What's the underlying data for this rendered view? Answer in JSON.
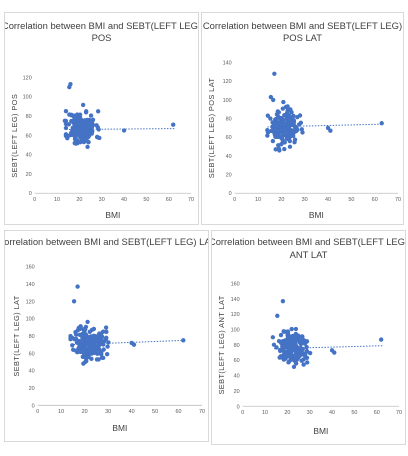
{
  "chart_data": [
    {
      "type": "scatter",
      "title": [
        "Correlation between BMI and SEBT(LEFT LEG)",
        "POS"
      ],
      "xlabel": "BMI",
      "ylabel": "SEBT(LEFT LEG) POS",
      "xlim": [
        0,
        70
      ],
      "xticks": [
        0,
        10,
        20,
        30,
        40,
        50,
        60,
        70
      ],
      "ylim": [
        0,
        120
      ],
      "yticks": [
        0,
        20,
        40,
        60,
        80,
        100,
        120
      ],
      "grid": false,
      "color": "#4472c4",
      "trendline": {
        "style": "dotted",
        "x": [
          14,
          63
        ],
        "y": [
          66,
          67
        ]
      },
      "outliers": {
        "x": [
          15.5,
          16,
          14,
          13.5,
          40,
          62
        ],
        "y": [
          110,
          113,
          85,
          75,
          65,
          71
        ]
      }
    },
    {
      "type": "scatter",
      "title": [
        "Correlation between BMI and SEBT(LEFT LEG)",
        "POS LAT"
      ],
      "xlabel": "BMI",
      "ylabel": "SEBT(LEFT LEG) POS LAT",
      "xlim": [
        0,
        70
      ],
      "xticks": [
        0,
        10,
        20,
        30,
        40,
        50,
        60,
        70
      ],
      "ylim": [
        0,
        140
      ],
      "yticks": [
        0,
        20,
        40,
        60,
        80,
        100,
        120,
        140
      ],
      "grid": false,
      "color": "#4472c4",
      "trendline": {
        "style": "dotted",
        "x": [
          14,
          63
        ],
        "y": [
          71,
          74
        ]
      },
      "outliers": {
        "x": [
          17,
          15.5,
          16.5,
          40,
          41,
          63
        ],
        "y": [
          128,
          103,
          100,
          70,
          67,
          75
        ]
      }
    },
    {
      "type": "scatter",
      "title": [
        "Correlation between BMI and SEBT(LEFT LEG) LAT"
      ],
      "xlabel": "BMI",
      "ylabel": "SEBT(LEFT LEG) LAT",
      "xlim": [
        0,
        70
      ],
      "xticks": [
        0,
        10,
        20,
        30,
        40,
        50,
        60,
        70
      ],
      "ylim": [
        0,
        160
      ],
      "yticks": [
        0,
        20,
        40,
        60,
        80,
        100,
        120,
        140,
        160
      ],
      "grid": false,
      "color": "#4472c4",
      "trendline": {
        "style": "dotted",
        "x": [
          14,
          63
        ],
        "y": [
          70,
          75
        ]
      },
      "outliers": {
        "x": [
          17,
          15.5,
          14,
          40,
          41,
          62
        ],
        "y": [
          137,
          120,
          80,
          72,
          70,
          75
        ]
      }
    },
    {
      "type": "scatter",
      "title": [
        "Correlation between BMI and SEBT(LEFT LEG)",
        "ANT LAT"
      ],
      "xlabel": "BMI",
      "ylabel": "SEBT(LEFT LEG) ANT LAT",
      "xlim": [
        0,
        70
      ],
      "xticks": [
        0,
        10,
        20,
        30,
        40,
        50,
        60,
        70
      ],
      "ylim": [
        0,
        160
      ],
      "yticks": [
        0,
        20,
        40,
        60,
        80,
        100,
        120,
        140,
        160
      ],
      "grid": false,
      "color": "#4472c4",
      "trendline": {
        "style": "dotted",
        "x": [
          14,
          63
        ],
        "y": [
          75,
          79
        ]
      },
      "outliers": {
        "x": [
          18,
          15.5,
          13.5,
          40,
          41,
          62
        ],
        "y": [
          137,
          118,
          90,
          73,
          70,
          87
        ]
      }
    }
  ]
}
